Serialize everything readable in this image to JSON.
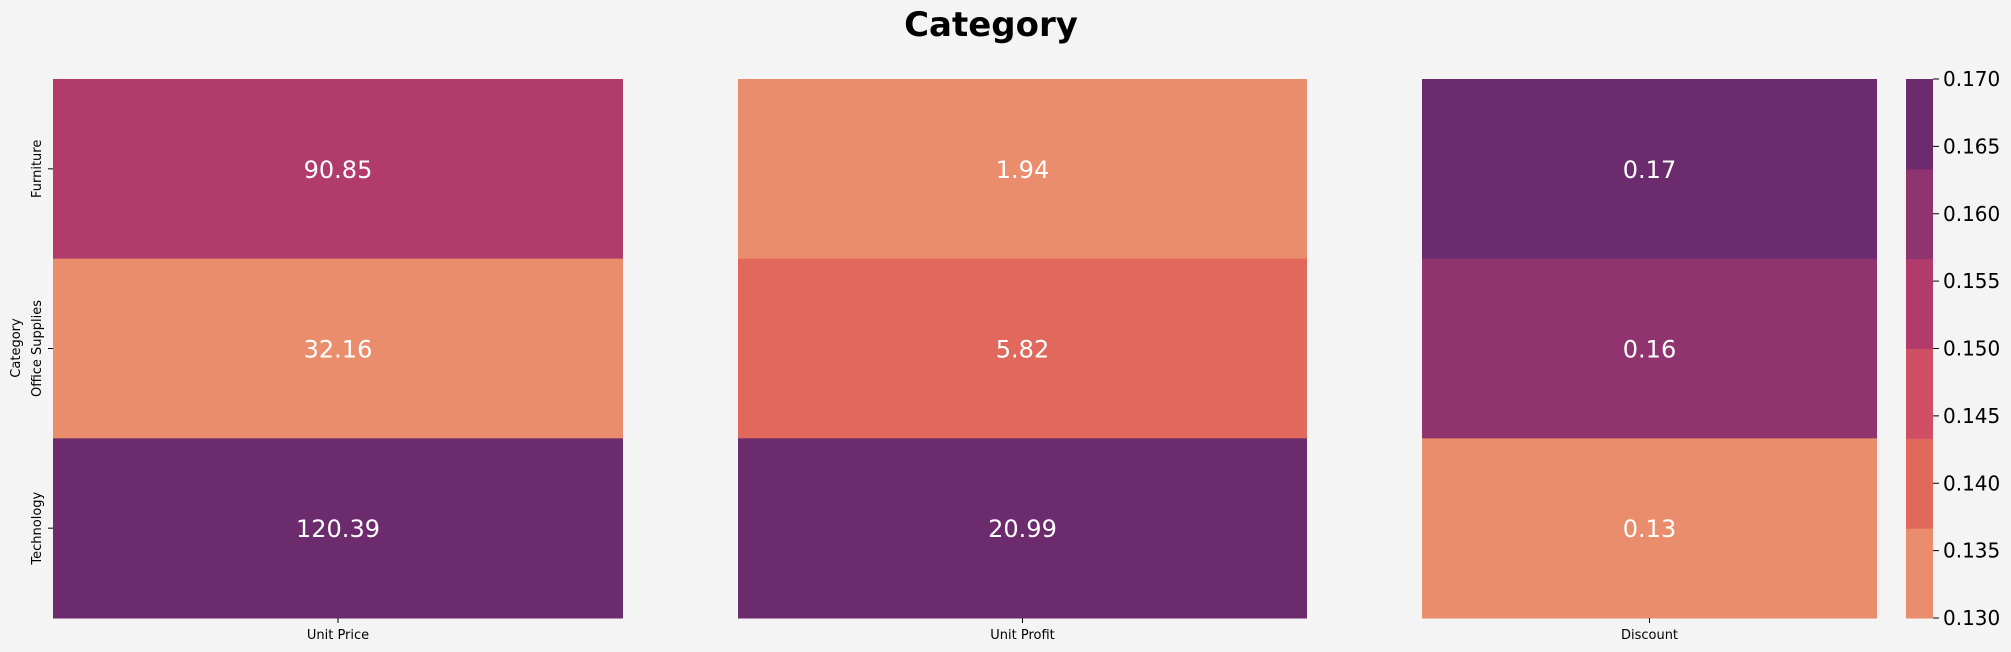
{
  "title": "Category",
  "chart_data": {
    "type": "heatmap",
    "title": "Category",
    "ylabel": "Category",
    "rows": [
      "Furniture",
      "Office Supplies",
      "Technology"
    ],
    "panels": [
      {
        "xlabel": "Unit Price",
        "values": [
          90.85,
          32.16,
          120.39
        ],
        "labels": [
          "90.85",
          "32.16",
          "120.39"
        ],
        "colors": [
          "#b13b6b",
          "#ea8d6c",
          "#6b2b6d"
        ]
      },
      {
        "xlabel": "Unit Profit",
        "values": [
          1.94,
          5.82,
          20.99
        ],
        "labels": [
          "1.94",
          "5.82",
          "20.99"
        ],
        "colors": [
          "#ea8d6c",
          "#e1685d",
          "#6b2b6d"
        ]
      },
      {
        "xlabel": "Discount",
        "values": [
          0.17,
          0.16,
          0.13
        ],
        "labels": [
          "0.17",
          "0.16",
          "0.13"
        ],
        "colors": [
          "#6b2b6d",
          "#8f346e",
          "#ea8d6c"
        ]
      }
    ],
    "colorbar": {
      "range": [
        0.13,
        0.17
      ],
      "ticks": [
        "0.130",
        "0.135",
        "0.140",
        "0.145",
        "0.150",
        "0.155",
        "0.160",
        "0.165",
        "0.170"
      ],
      "bands": [
        "#ea8d6c",
        "#e1685d",
        "#cf4f64",
        "#b13b6b",
        "#8f346e",
        "#6b2b6d"
      ]
    },
    "grid": false,
    "cell_text_color": "#ffffff",
    "background": "#f4f4f4"
  }
}
